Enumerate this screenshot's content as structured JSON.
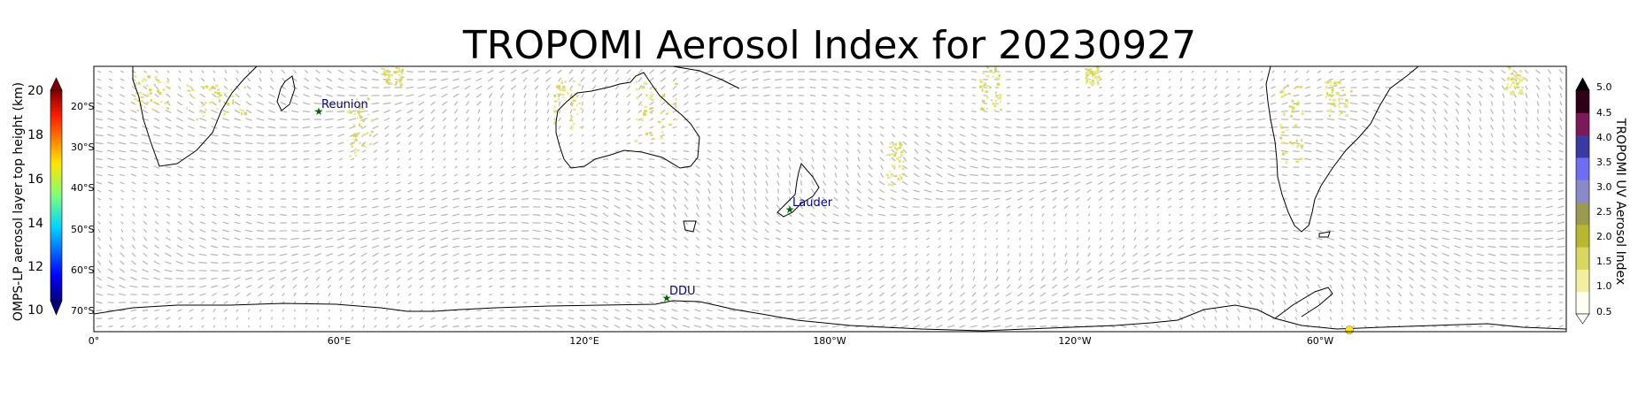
{
  "chart_data": {
    "type": "map",
    "title": "TROPOMI Aerosol Index for 20230927",
    "projection": "PlateCarree, central longitude 180",
    "lon_range": [
      0,
      360
    ],
    "lat_range": [
      -75,
      -10
    ],
    "x_ticks": [
      {
        "lon": 0,
        "label": "0°"
      },
      {
        "lon": 60,
        "label": "60°E"
      },
      {
        "lon": 120,
        "label": "120°E"
      },
      {
        "lon": 180,
        "label": "180°W"
      },
      {
        "lon": 240,
        "label": "120°W"
      },
      {
        "lon": 300,
        "label": "60°W"
      }
    ],
    "y_ticks": [
      {
        "lat": -20,
        "label": "20°S"
      },
      {
        "lat": -30,
        "label": "30°S"
      },
      {
        "lat": -40,
        "label": "40°S"
      },
      {
        "lat": -50,
        "label": "50°S"
      },
      {
        "lat": -60,
        "label": "60°S"
      },
      {
        "lat": -70,
        "label": "70°S"
      }
    ],
    "left_colorbar": {
      "label": "OMPS-LP aerosol layer top height (km)",
      "range": [
        9.5,
        21
      ],
      "ticks": [
        "10",
        "12",
        "14",
        "16",
        "18",
        "20"
      ],
      "colormap": "jet",
      "extend": "both"
    },
    "right_colorbar": {
      "label": "TROPOMI UV Aerosol Index",
      "range": [
        0.5,
        5.0
      ],
      "ticks": [
        "0.5",
        "1.0",
        "1.5",
        "2.0",
        "2.5",
        "3.0",
        "3.5",
        "4.0",
        "4.5",
        "5.0"
      ],
      "colors": [
        "#fffff0",
        "#f0f0a0",
        "#d8d860",
        "#b8b830",
        "#9a9a50",
        "#8a8ac8",
        "#6e6ef0",
        "#3a3aa0",
        "#7a1a5a",
        "#300018"
      ],
      "extend": "both"
    },
    "stations": [
      {
        "name": "Reunion",
        "lon": 55.5,
        "lat": -21.1
      },
      {
        "name": "Lauder",
        "lon": 169.7,
        "lat": -45.0
      },
      {
        "name": "DDU",
        "lon": 140.0,
        "lat": -66.7
      }
    ],
    "omps_points": [
      {
        "lon": 306,
        "lat": -74,
        "height_km": 17.5
      }
    ],
    "wind_vectors": "gray arrows (wind field) over map",
    "grid": false
  }
}
